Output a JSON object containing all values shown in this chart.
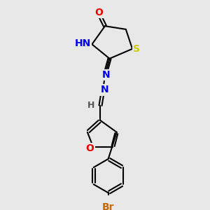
{
  "bg_color": "#e8e8e8",
  "atom_colors": {
    "C": "#000000",
    "H": "#555555",
    "N": "#0000ee",
    "O": "#ee0000",
    "S": "#cccc00",
    "Br": "#cc6600"
  },
  "bond_color": "#000000",
  "bond_lw": 1.5,
  "font_size": 10,
  "small_font_size": 9,
  "figsize": [
    3.0,
    3.0
  ],
  "dpi": 100
}
